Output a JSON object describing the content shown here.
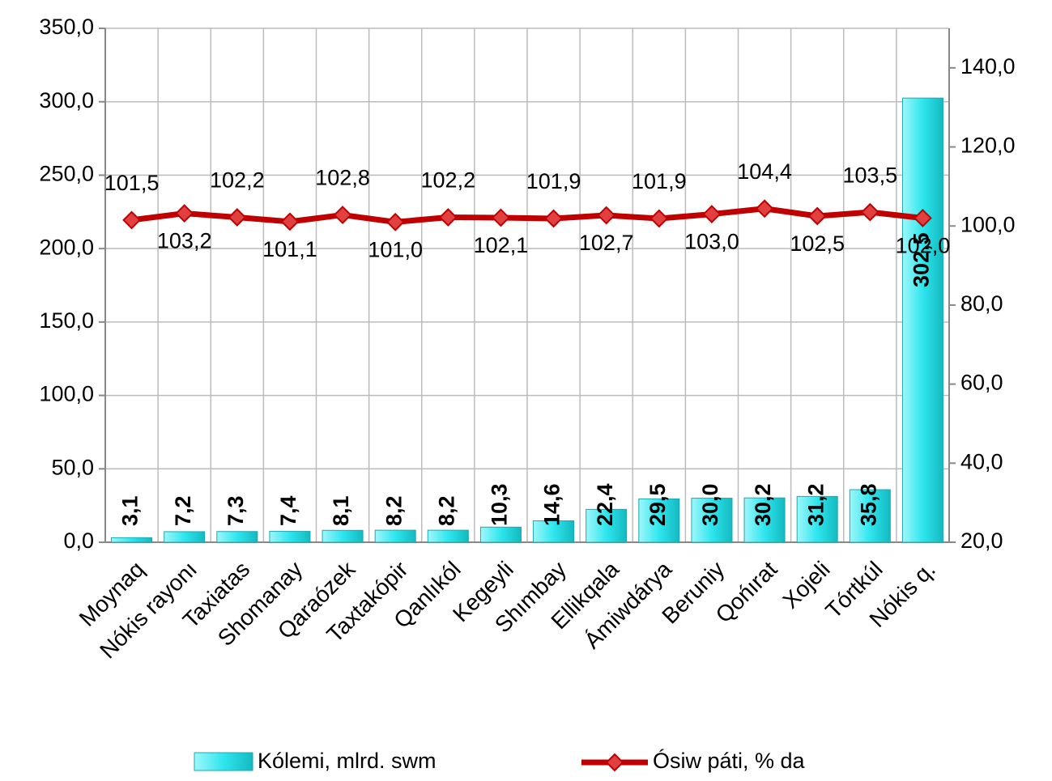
{
  "chart_data": {
    "type": "bar-line",
    "categories": [
      "Moynaq",
      "Nókis rayonı",
      "Taxiatas",
      "Shomanay",
      "Qaraózek",
      "Taxtakópir",
      "Qanlıkól",
      "Kegeyli",
      "Shımbay",
      "Ellikqala",
      "Ámiwdárya",
      "Beruniy",
      "Qońırat",
      "Xojeli",
      "Tórtkúl",
      "Nókis q."
    ],
    "series": [
      {
        "name": "Kólemi, mlrd. swm",
        "color": "#2ee6ee",
        "values": [
          3.1,
          7.2,
          7.3,
          7.4,
          8.1,
          8.2,
          8.2,
          10.3,
          14.6,
          22.4,
          29.5,
          30.0,
          30.2,
          31.2,
          35.8,
          302.5
        ],
        "value_labels": [
          "3,1",
          "7,2",
          "7,3",
          "7,4",
          "8,1",
          "8,2",
          "8,2",
          "10,3",
          "14,6",
          "22,4",
          "29,5",
          "30,0",
          "30,2",
          "31,2",
          "35,8",
          "302,5"
        ]
      },
      {
        "name": "Ósiw páti, % da",
        "color": "#c00000",
        "axis": "y2",
        "values": [
          101.5,
          103.2,
          102.2,
          101.1,
          102.8,
          101.0,
          102.2,
          102.1,
          101.9,
          102.7,
          101.9,
          103.0,
          104.4,
          102.5,
          103.5,
          102.0
        ],
        "value_labels": [
          "101,5",
          "103,2",
          "102,2",
          "101,1",
          "102,8",
          "101,0",
          "102,2",
          "102,1",
          "101,9",
          "102,7",
          "101,9",
          "103,0",
          "104,4",
          "102,5",
          "103,5",
          "102,0"
        ]
      }
    ],
    "ylim": [
      0,
      350
    ],
    "yticks": [
      {
        "value": 0,
        "label": "0,0"
      },
      {
        "value": 50,
        "label": "50,0"
      },
      {
        "value": 100,
        "label": "100,0"
      },
      {
        "value": 150,
        "label": "150,0"
      },
      {
        "value": 200,
        "label": "200,0"
      },
      {
        "value": 250,
        "label": "250,0"
      },
      {
        "value": 300,
        "label": "300,0"
      },
      {
        "value": 350,
        "label": "350,0"
      }
    ],
    "y2lim": [
      20,
      150
    ],
    "y2ticks": [
      {
        "value": 20,
        "label": "20,0"
      },
      {
        "value": 40,
        "label": "40,0"
      },
      {
        "value": 60,
        "label": "60,0"
      },
      {
        "value": 80,
        "label": "80,0"
      },
      {
        "value": 100,
        "label": "100,0"
      },
      {
        "value": 120,
        "label": "120,0"
      },
      {
        "value": 140,
        "label": "140,0"
      }
    ],
    "grid": true
  }
}
